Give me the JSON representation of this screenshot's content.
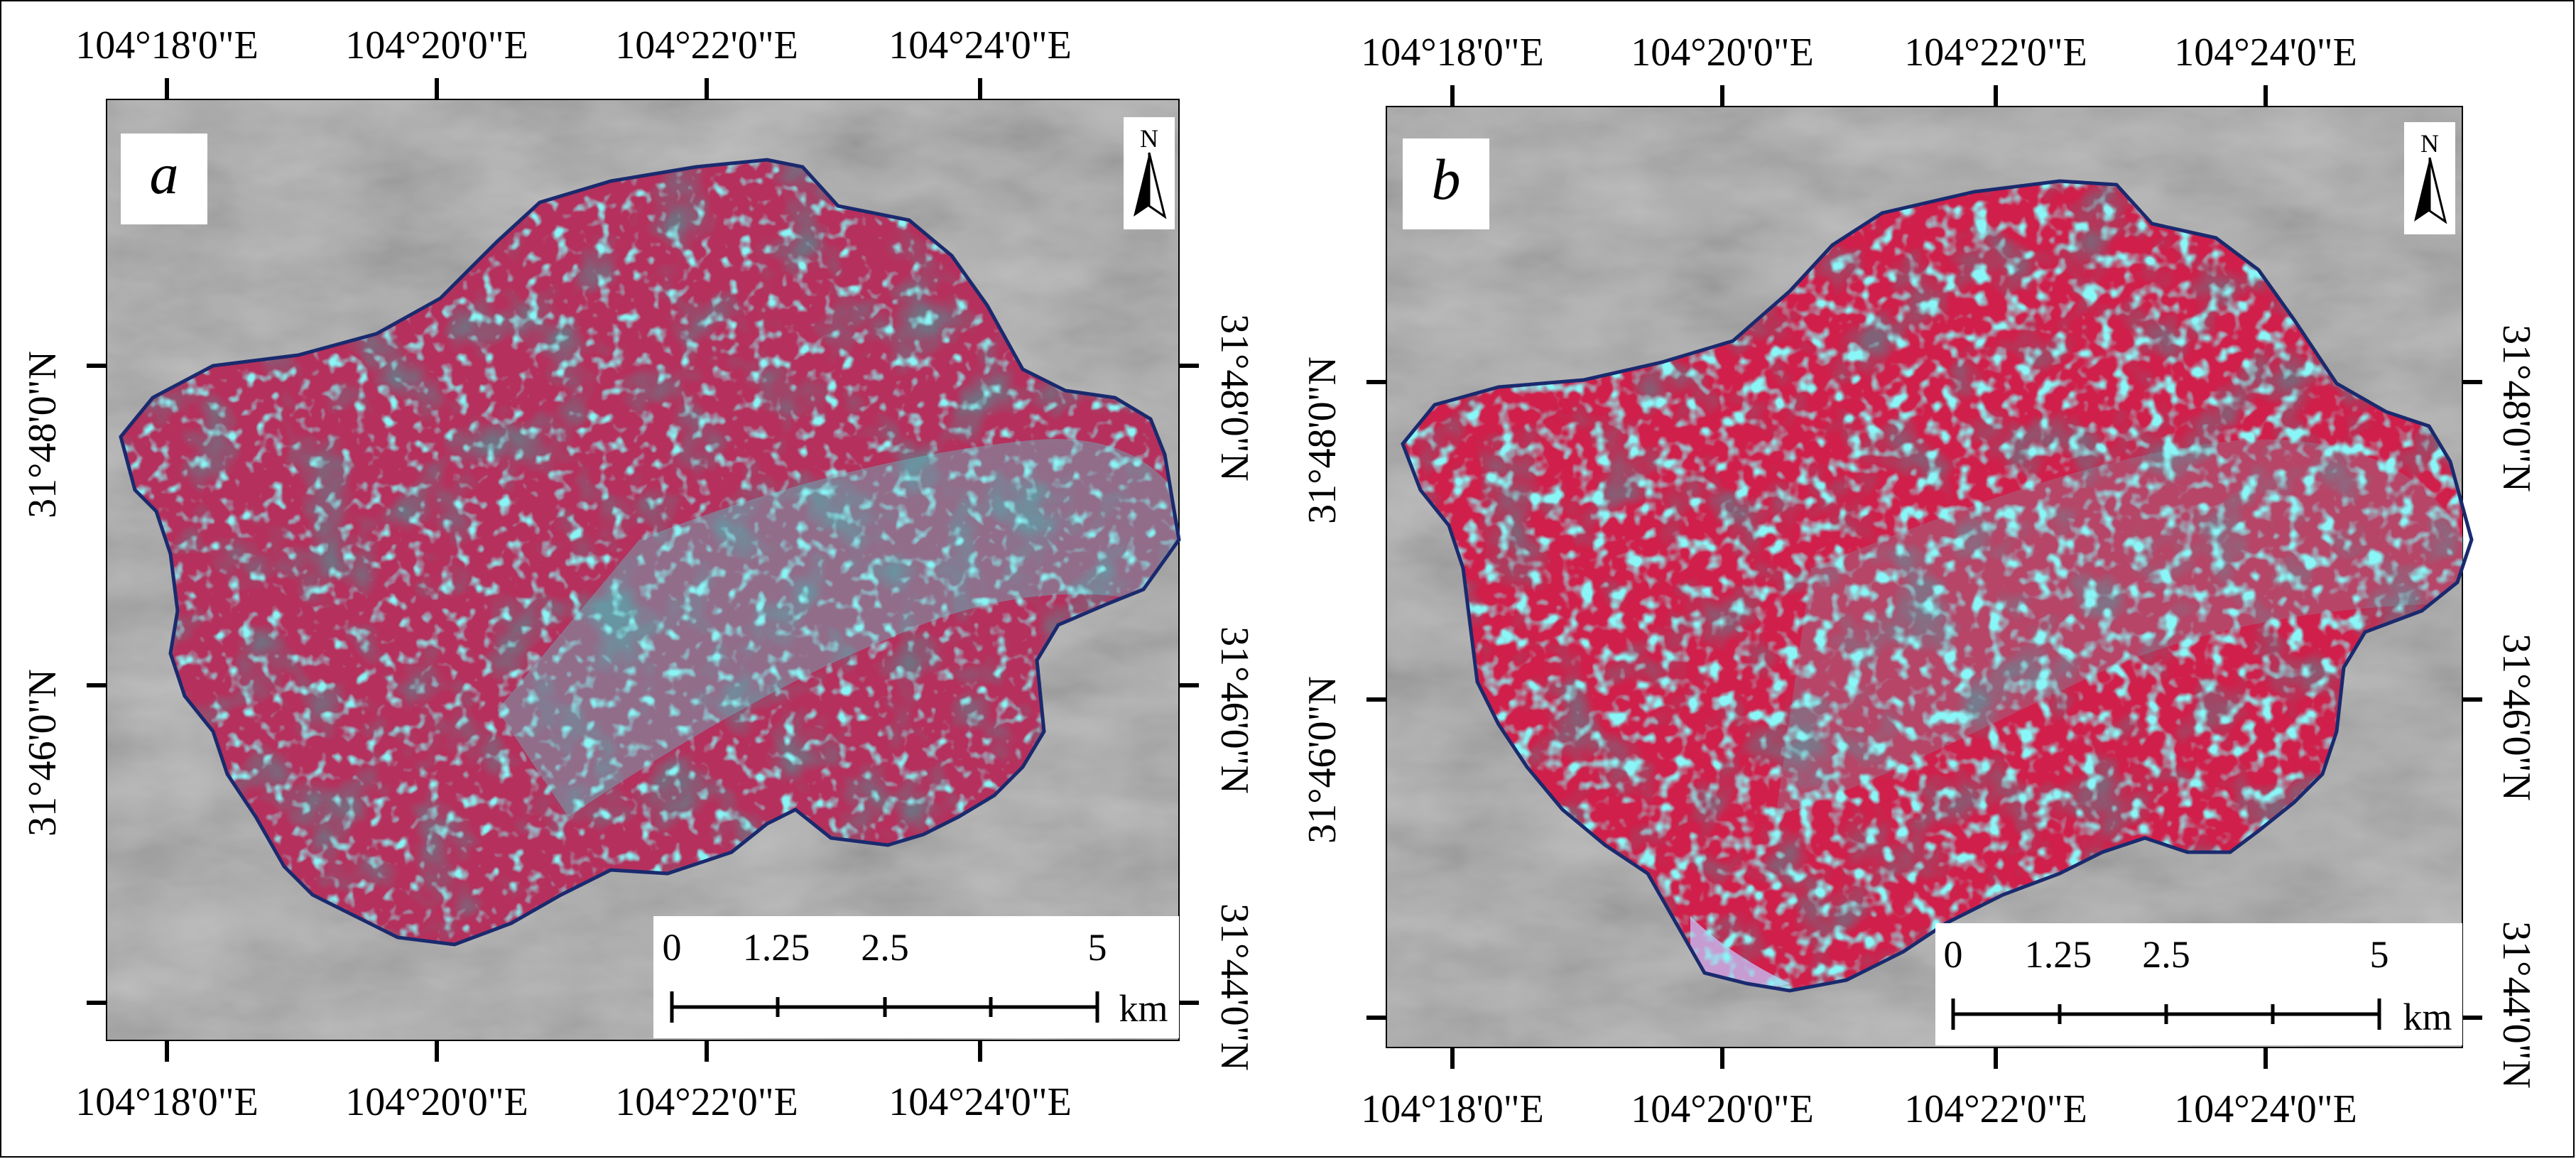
{
  "panels": [
    {
      "label": "a",
      "north_letter": "N",
      "top_lon": [
        "104°18'0\"E",
        "104°20'0\"E",
        "104°22'0\"E",
        "104°24'0\"E"
      ],
      "bottom_lon": [
        "104°18'0\"E",
        "104°20'0\"E",
        "104°22'0\"E",
        "104°24'0\"E"
      ],
      "left_lat": [
        "31°46'0\"N",
        "31°48'0\"N"
      ],
      "right_lat": [
        "31°44'0\"N",
        "31°46'0\"N",
        "31°48'0\"N"
      ],
      "scale": {
        "ticks": [
          "0",
          "1.25",
          "2.5",
          "5"
        ],
        "unit": "km"
      }
    },
    {
      "label": "b",
      "north_letter": "N",
      "top_lon": [
        "104°18'0\"E",
        "104°20'0\"E",
        "104°22'0\"E",
        "104°24'0\"E"
      ],
      "bottom_lon": [
        "104°18'0\"E",
        "104°20'0\"E",
        "104°22'0\"E",
        "104°24'0\"E"
      ],
      "left_lat": [
        "31°46'0\"N",
        "31°48'0\"N"
      ],
      "right_lat": [
        "31°44'0\"N",
        "31°46'0\"N",
        "31°48'0\"N"
      ],
      "scale": {
        "ticks": [
          "0",
          "1.25",
          "2.5",
          "5"
        ],
        "unit": "km"
      }
    }
  ],
  "colors": {
    "basemap": "#a8a8a8",
    "boundary": "#1a2a6e",
    "vegetation_panel_a": "#b8305c",
    "vegetation_panel_b": "#d8204a",
    "bare_land": "#40e8e8",
    "shadow": "#2c2a3a"
  }
}
